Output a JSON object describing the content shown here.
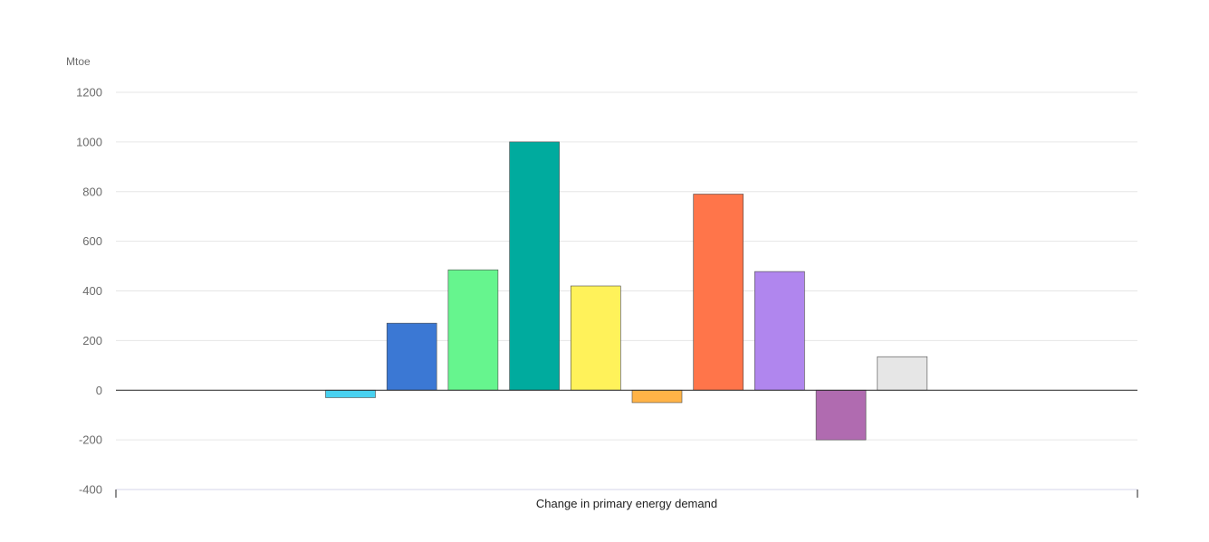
{
  "chart_data": {
    "type": "bar",
    "title": "",
    "ylabel": "Mtoe",
    "xlabel": "Change in primary energy demand",
    "ylim": [
      -400,
      1200
    ],
    "yticks": [
      1200,
      1000,
      800,
      600,
      400,
      200,
      0,
      -200,
      -400
    ],
    "grid": true,
    "legend": "none",
    "categories": [
      "",
      "",
      "",
      "",
      "",
      "",
      "",
      "",
      "",
      ""
    ],
    "values": [
      -30,
      270,
      485,
      1000,
      420,
      -50,
      790,
      478,
      -200,
      135
    ],
    "colors": [
      "#48d1f0",
      "#3b78d4",
      "#66f58e",
      "#00ab9e",
      "#fff25a",
      "#ffb347",
      "#ff754a",
      "#b086ee",
      "#b06bb0",
      "#e6e6e6"
    ]
  }
}
